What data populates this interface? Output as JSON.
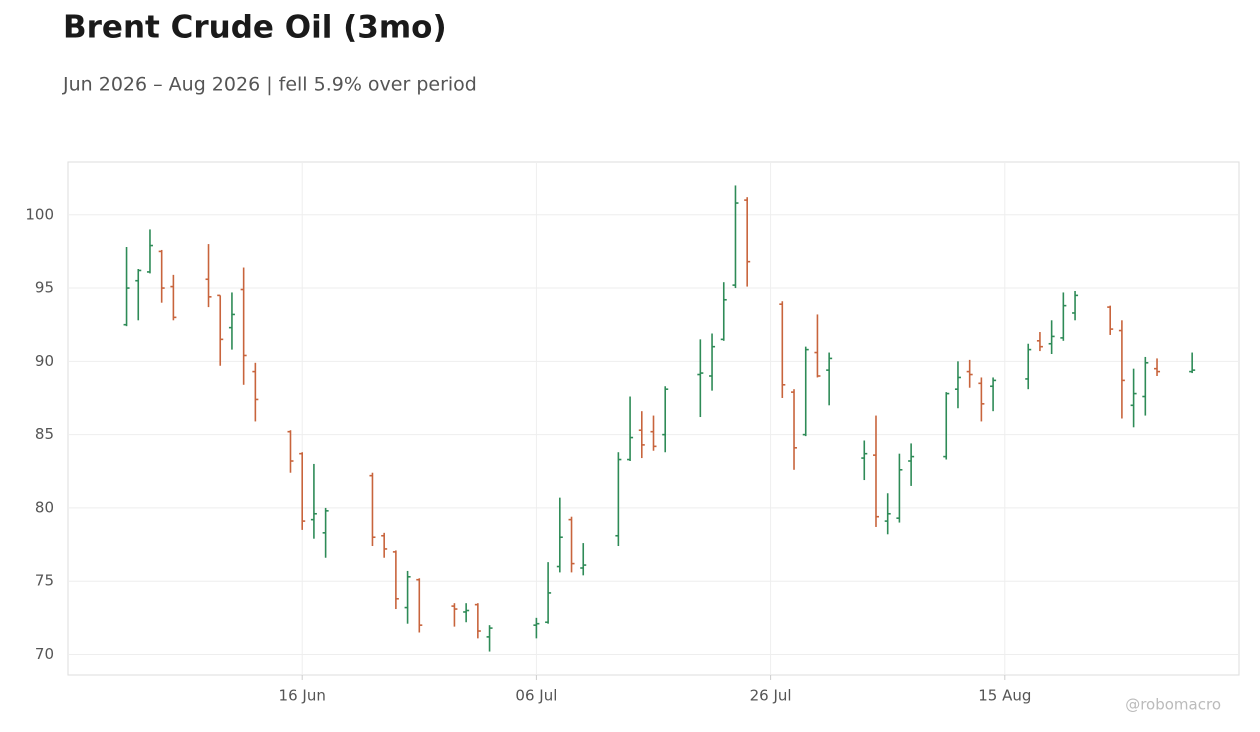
{
  "chart_data": {
    "type": "ohlc",
    "title": "Brent Crude Oil (3mo)",
    "subtitle": "Jun 2026 – Aug 2026 | fell 5.9% over period",
    "watermark": "@robomacro",
    "x": [
      "2026-06-01",
      "2026-06-02",
      "2026-06-03",
      "2026-06-04",
      "2026-06-05",
      "2026-06-08",
      "2026-06-09",
      "2026-06-10",
      "2026-06-11",
      "2026-06-12",
      "2026-06-15",
      "2026-06-16",
      "2026-06-17",
      "2026-06-18",
      "2026-06-22",
      "2026-06-23",
      "2026-06-24",
      "2026-06-25",
      "2026-06-26",
      "2026-06-29",
      "2026-06-30",
      "2026-07-01",
      "2026-07-02",
      "2026-07-06",
      "2026-07-07",
      "2026-07-08",
      "2026-07-09",
      "2026-07-10",
      "2026-07-13",
      "2026-07-14",
      "2026-07-15",
      "2026-07-16",
      "2026-07-17",
      "2026-07-20",
      "2026-07-21",
      "2026-07-22",
      "2026-07-23",
      "2026-07-24",
      "2026-07-27",
      "2026-07-28",
      "2026-07-29",
      "2026-07-30",
      "2026-07-31",
      "2026-08-03",
      "2026-08-04",
      "2026-08-05",
      "2026-08-06",
      "2026-08-07",
      "2026-08-10",
      "2026-08-11",
      "2026-08-12",
      "2026-08-13",
      "2026-08-14",
      "2026-08-17",
      "2026-08-18",
      "2026-08-19",
      "2026-08-20",
      "2026-08-21",
      "2026-08-24",
      "2026-08-25",
      "2026-08-26",
      "2026-08-27",
      "2026-08-28",
      "2026-08-31"
    ],
    "open": [
      92.5,
      95.5,
      96.1,
      97.5,
      95.1,
      95.6,
      94.5,
      92.3,
      94.9,
      89.3,
      85.2,
      83.7,
      79.2,
      78.3,
      82.2,
      78.1,
      77.0,
      73.2,
      75.1,
      73.3,
      72.9,
      73.4,
      71.2,
      72.0,
      72.2,
      76.0,
      79.2,
      75.9,
      78.1,
      83.3,
      85.3,
      85.2,
      85.0,
      89.1,
      89.0,
      91.5,
      95.2,
      101.0,
      93.9,
      87.9,
      85.0,
      90.6,
      89.4,
      83.4,
      83.6,
      79.1,
      79.3,
      83.2,
      83.5,
      88.1,
      89.3,
      88.5,
      88.3,
      88.8,
      91.4,
      91.2,
      91.6,
      93.3,
      93.7,
      92.1,
      87.0,
      87.6,
      89.5,
      89.3
    ],
    "high": [
      97.8,
      96.3,
      99.0,
      97.6,
      95.9,
      98.0,
      94.5,
      94.7,
      96.4,
      89.9,
      85.3,
      83.8,
      83.0,
      80.0,
      82.4,
      78.3,
      77.1,
      75.7,
      75.2,
      73.5,
      73.5,
      73.5,
      72.0,
      72.5,
      76.3,
      80.7,
      79.4,
      77.6,
      83.8,
      87.6,
      86.6,
      86.3,
      88.3,
      91.5,
      91.9,
      95.4,
      102.0,
      101.2,
      94.1,
      88.1,
      91.0,
      93.2,
      90.6,
      84.6,
      86.3,
      81.0,
      83.7,
      84.4,
      87.9,
      90.0,
      90.1,
      88.9,
      88.9,
      91.2,
      92.0,
      92.8,
      94.7,
      94.8,
      93.8,
      92.8,
      89.5,
      90.3,
      90.2,
      90.6
    ],
    "low": [
      92.4,
      92.8,
      96.0,
      94.0,
      92.8,
      93.7,
      89.7,
      90.8,
      88.4,
      85.9,
      82.4,
      78.5,
      77.9,
      76.6,
      77.4,
      76.6,
      73.1,
      72.1,
      71.5,
      71.9,
      72.2,
      71.1,
      70.2,
      71.1,
      72.1,
      75.6,
      75.6,
      75.4,
      77.4,
      83.2,
      83.4,
      83.9,
      83.8,
      86.2,
      88.0,
      91.4,
      95.0,
      95.1,
      87.5,
      82.6,
      84.9,
      88.9,
      87.0,
      81.9,
      78.7,
      78.2,
      79.0,
      81.5,
      83.3,
      86.8,
      88.2,
      85.9,
      86.6,
      88.1,
      90.7,
      90.5,
      91.4,
      92.8,
      91.8,
      86.1,
      85.5,
      86.3,
      89.0,
      89.2
    ],
    "close": [
      95.0,
      96.2,
      97.9,
      95.0,
      93.0,
      94.4,
      91.5,
      93.2,
      90.4,
      87.4,
      83.2,
      79.1,
      79.6,
      79.8,
      78.0,
      77.2,
      73.8,
      75.3,
      72.0,
      73.1,
      73.0,
      71.6,
      71.8,
      72.1,
      74.2,
      78.0,
      76.2,
      76.1,
      83.3,
      84.8,
      84.3,
      84.2,
      88.1,
      89.2,
      91.0,
      94.2,
      100.8,
      96.8,
      88.4,
      84.1,
      90.8,
      89.0,
      90.2,
      83.7,
      79.4,
      79.6,
      82.6,
      83.5,
      87.8,
      88.9,
      89.1,
      87.1,
      88.7,
      90.8,
      91.0,
      91.7,
      93.8,
      94.5,
      92.2,
      88.7,
      87.8,
      89.9,
      89.3,
      89.4
    ],
    "up_color": "#2e8b57",
    "down_color": "#c8643c",
    "xlim": [
      "2026-05-27",
      "2026-09-04"
    ],
    "xticks": [
      {
        "value": "2026-06-16",
        "label": "16 Jun"
      },
      {
        "value": "2026-07-06",
        "label": "06 Jul"
      },
      {
        "value": "2026-07-26",
        "label": "26 Jul"
      },
      {
        "value": "2026-08-15",
        "label": "15 Aug"
      }
    ],
    "ylim": [
      68.6,
      103.6
    ],
    "yticks": [
      70,
      75,
      80,
      85,
      90,
      95,
      100
    ],
    "grid": true
  }
}
